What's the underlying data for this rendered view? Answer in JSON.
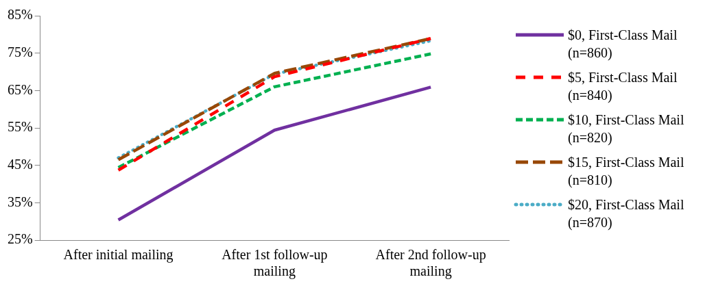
{
  "chart_data": {
    "type": "line",
    "categories": [
      "After initial mailing",
      "After 1st follow-up mailing",
      "After 2nd follow-up mailing"
    ],
    "series": [
      {
        "name": "$0, First-Class Mail (n=860)",
        "color": "#7030a0",
        "line_style": "solid",
        "values": [
          30.4,
          54.4,
          65.9
        ]
      },
      {
        "name": "$5, First-Class Mail (n=840)",
        "color": "#ff0000",
        "line_style": "dashed",
        "values": [
          43.7,
          68.7,
          78.9
        ]
      },
      {
        "name": "$10, First-Class Mail (n=820)",
        "color": "#00b050",
        "line_style": "dashed",
        "values": [
          44.4,
          66,
          74.8
        ]
      },
      {
        "name": "$15, First-Class Mail (n=810)",
        "color": "#984807",
        "line_style": "dashed",
        "values": [
          46.5,
          69.6,
          78.9
        ]
      },
      {
        "name": "$20, First-Class Mail (n=870)",
        "color": "#4bacc6",
        "line_style": "dotted",
        "values": [
          47,
          69.4,
          78.3
        ]
      }
    ],
    "ylim": [
      25,
      85
    ],
    "yticks": [
      {
        "value": 25,
        "label": "25%"
      },
      {
        "value": 35,
        "label": "35%"
      },
      {
        "value": 45,
        "label": "45%"
      },
      {
        "value": 55,
        "label": "55%"
      },
      {
        "value": 65,
        "label": "65%"
      },
      {
        "value": 75,
        "label": "75%"
      },
      {
        "value": 85,
        "label": "85%"
      }
    ],
    "grid": false,
    "legend": "right",
    "marker": "none"
  }
}
